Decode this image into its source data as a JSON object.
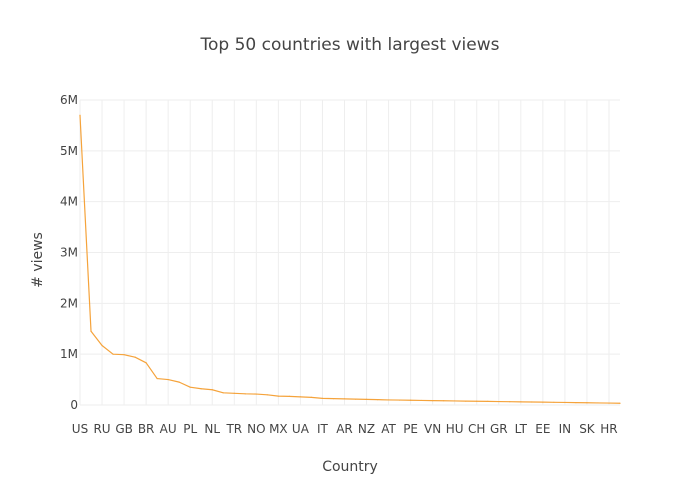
{
  "chart_data": {
    "type": "line",
    "title": "Top 50 countries with largest views",
    "xlabel": "Country",
    "ylabel": "# views",
    "ylim": [
      0,
      6000000
    ],
    "y_ticks": [
      {
        "value": 0,
        "label": "0"
      },
      {
        "value": 1000000,
        "label": "1M"
      },
      {
        "value": 2000000,
        "label": "2M"
      },
      {
        "value": 3000000,
        "label": "3M"
      },
      {
        "value": 4000000,
        "label": "4M"
      },
      {
        "value": 5000000,
        "label": "5M"
      },
      {
        "value": 6000000,
        "label": "6M"
      }
    ],
    "x_tick_labels": [
      "US",
      "RU",
      "GB",
      "BR",
      "AU",
      "PL",
      "NL",
      "TR",
      "NO",
      "MX",
      "UA",
      "IT",
      "AR",
      "NZ",
      "AT",
      "PE",
      "VN",
      "HU",
      "CH",
      "GR",
      "LT",
      "EE",
      "IN",
      "SK",
      "HR"
    ],
    "grid": true,
    "line_color": "#f5a33b",
    "values": [
      5700000,
      1450000,
      1170000,
      1000000,
      990000,
      940000,
      830000,
      520000,
      500000,
      450000,
      350000,
      320000,
      300000,
      240000,
      230000,
      220000,
      215000,
      200000,
      175000,
      170000,
      160000,
      150000,
      130000,
      125000,
      120000,
      115000,
      110000,
      105000,
      100000,
      97000,
      93000,
      90000,
      86000,
      83000,
      80000,
      77000,
      74000,
      71000,
      68000,
      65000,
      62000,
      59000,
      56000,
      53000,
      50000,
      47000,
      44000,
      41000,
      38000,
      35000
    ]
  }
}
